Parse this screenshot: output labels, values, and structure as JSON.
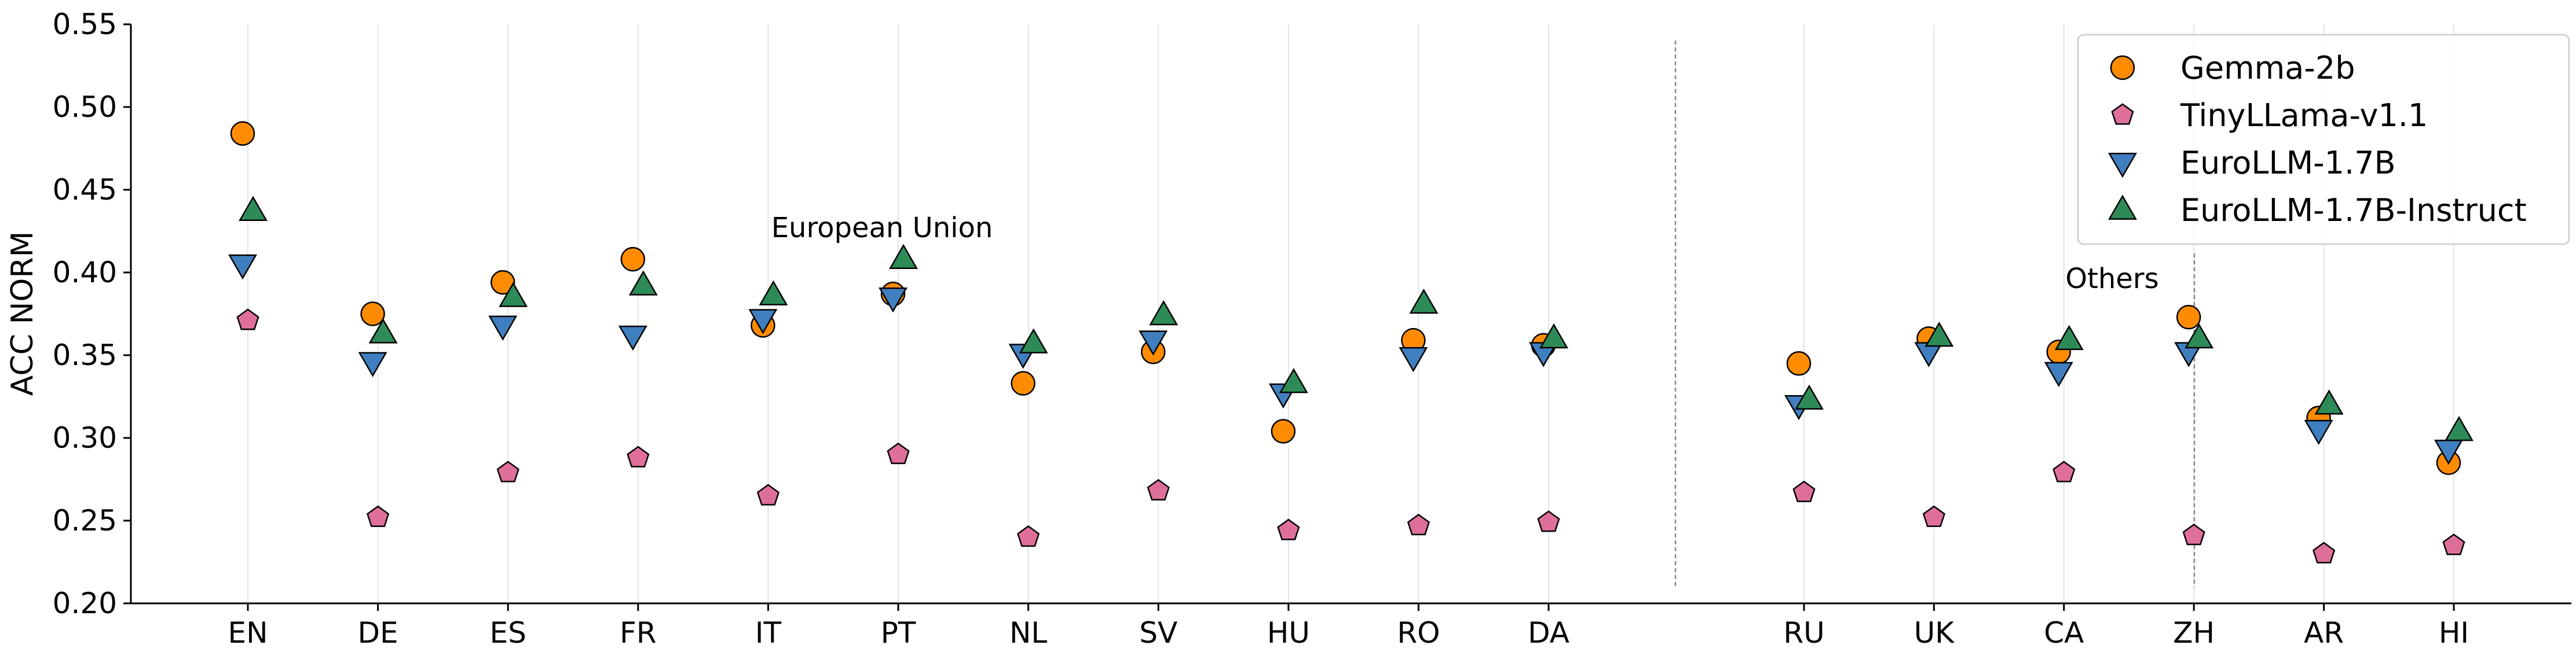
{
  "chart_data": {
    "type": "scatter",
    "ylabel": "ACC NORM",
    "xlabel": "",
    "ylim": [
      0.2,
      0.55
    ],
    "yticks": [
      "0.20",
      "0.25",
      "0.30",
      "0.35",
      "0.40",
      "0.45",
      "0.50",
      "0.55"
    ],
    "categories": [
      "EN",
      "DE",
      "ES",
      "FR",
      "IT",
      "PT",
      "NL",
      "SV",
      "HU",
      "RO",
      "DA",
      "RU",
      "UK",
      "CA",
      "ZH",
      "AR",
      "HI"
    ],
    "groups": [
      {
        "name": "European Union",
        "categories": [
          "EN",
          "DE",
          "ES",
          "FR",
          "IT",
          "PT",
          "NL",
          "SV",
          "HU",
          "RO",
          "DA"
        ]
      },
      {
        "name": "Others",
        "categories": [
          "RU",
          "UK",
          "CA",
          "ZH",
          "AR",
          "HI"
        ]
      }
    ],
    "annotations": [
      "European Union",
      "Others"
    ],
    "legend_position": "top-right",
    "grid": "vertical",
    "series": [
      {
        "name": "Gemma-2b",
        "marker": "circle",
        "color": "#ff8c00",
        "values": [
          0.484,
          0.375,
          0.394,
          0.408,
          0.368,
          0.387,
          0.333,
          0.352,
          0.304,
          0.359,
          0.356,
          0.345,
          0.36,
          0.352,
          0.373,
          0.312,
          0.285
        ]
      },
      {
        "name": "TinyLLama-v1.1",
        "marker": "pentagon",
        "color": "#de6f9b",
        "values": [
          0.371,
          0.252,
          0.279,
          0.288,
          0.265,
          0.29,
          0.24,
          0.268,
          0.244,
          0.247,
          0.249,
          0.267,
          0.252,
          0.279,
          0.241,
          0.23,
          0.235
        ]
      },
      {
        "name": "EuroLLM-1.7B",
        "marker": "triangle-down",
        "color": "#3f7fbf",
        "values": [
          0.405,
          0.346,
          0.368,
          0.362,
          0.372,
          0.385,
          0.351,
          0.359,
          0.327,
          0.349,
          0.352,
          0.32,
          0.352,
          0.34,
          0.352,
          0.305,
          0.293
        ]
      },
      {
        "name": "EuroLLM-1.7B-Instruct",
        "marker": "triangle-up",
        "color": "#2e8b57",
        "values": [
          0.437,
          0.363,
          0.385,
          0.392,
          0.386,
          0.408,
          0.357,
          0.374,
          0.333,
          0.381,
          0.36,
          0.323,
          0.361,
          0.359,
          0.36,
          0.32,
          0.304
        ]
      }
    ]
  }
}
